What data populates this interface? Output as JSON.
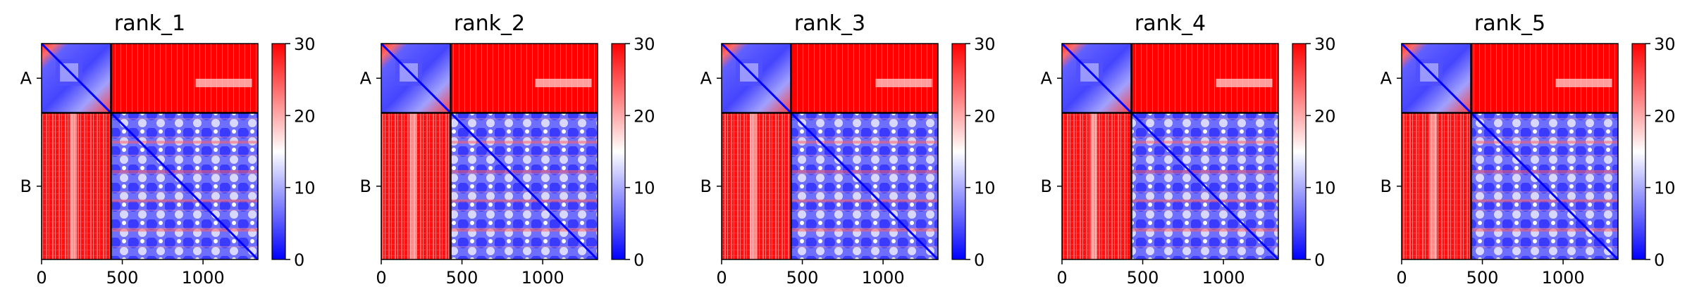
{
  "figure": {
    "colormap": {
      "low": "#0000ff",
      "mid": "#ffffff",
      "high": "#ff0000"
    }
  },
  "chart_data": [
    {
      "type": "heatmap",
      "title": "rank_1",
      "x_range": [
        0,
        1340
      ],
      "x_ticks": [
        0,
        500,
        1000
      ],
      "y_chain_labels": [
        "A",
        "B"
      ],
      "chain_boundary": 430,
      "colorbar": {
        "min": 0,
        "max": 30,
        "ticks": [
          0,
          10,
          20,
          30
        ]
      }
    },
    {
      "type": "heatmap",
      "title": "rank_2",
      "x_range": [
        0,
        1340
      ],
      "x_ticks": [
        0,
        500,
        1000
      ],
      "y_chain_labels": [
        "A",
        "B"
      ],
      "chain_boundary": 430,
      "colorbar": {
        "min": 0,
        "max": 30,
        "ticks": [
          0,
          10,
          20,
          30
        ]
      }
    },
    {
      "type": "heatmap",
      "title": "rank_3",
      "x_range": [
        0,
        1340
      ],
      "x_ticks": [
        0,
        500,
        1000
      ],
      "y_chain_labels": [
        "A",
        "B"
      ],
      "chain_boundary": 430,
      "colorbar": {
        "min": 0,
        "max": 30,
        "ticks": [
          0,
          10,
          20,
          30
        ]
      }
    },
    {
      "type": "heatmap",
      "title": "rank_4",
      "x_range": [
        0,
        1340
      ],
      "x_ticks": [
        0,
        500,
        1000
      ],
      "y_chain_labels": [
        "A",
        "B"
      ],
      "chain_boundary": 430,
      "colorbar": {
        "min": 0,
        "max": 30,
        "ticks": [
          0,
          10,
          20,
          30
        ]
      }
    },
    {
      "type": "heatmap",
      "title": "rank_5",
      "x_range": [
        0,
        1340
      ],
      "x_ticks": [
        0,
        500,
        1000
      ],
      "y_chain_labels": [
        "A",
        "B"
      ],
      "chain_boundary": 430,
      "colorbar": {
        "min": 0,
        "max": 30,
        "ticks": [
          0,
          10,
          20,
          30
        ]
      }
    }
  ]
}
